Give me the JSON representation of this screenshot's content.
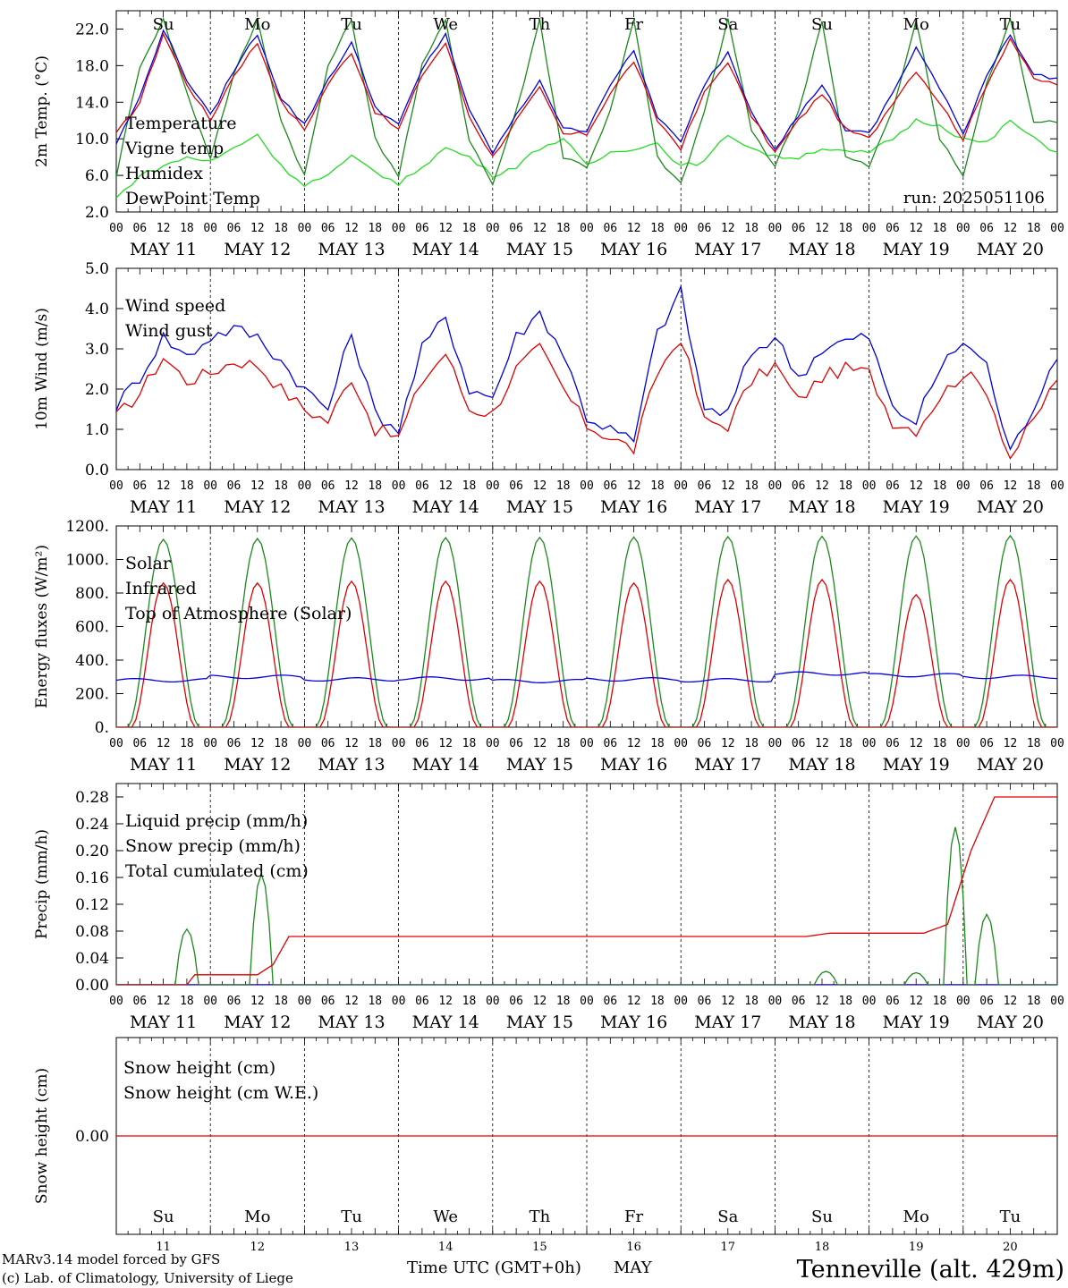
{
  "footer": {
    "credit1": "MARv3.14 model forced by GFS",
    "credit2": "(c) Lab. of Climatology, University of Liege",
    "xlabel": "Time UTC (GMT+0h)",
    "month": "MAY",
    "station": "Tenneville (alt. 429m)"
  },
  "axis": {
    "hour_ticks": [
      "00",
      "06",
      "12",
      "18"
    ],
    "end_tick": "00",
    "dates": [
      "MAY 11",
      "MAY 12",
      "MAY 13",
      "MAY 14",
      "MAY 15",
      "MAY 16",
      "MAY 17",
      "MAY 18",
      "MAY 19",
      "MAY 20"
    ],
    "weekdays": [
      "Su",
      "Mo",
      "Tu",
      "We",
      "Th",
      "Fr",
      "Sa",
      "Su",
      "Mo",
      "Tu"
    ],
    "weekday_colors": [
      "#e00000",
      "#000000",
      "#000000",
      "#000000",
      "#000000",
      "#000000",
      "#e00000",
      "#e00000",
      "#000000",
      "#000000"
    ],
    "day_numbers": [
      "11",
      "12",
      "13",
      "14",
      "15",
      "16",
      "17",
      "18",
      "19",
      "20"
    ]
  },
  "colors": {
    "red": "#e00000",
    "blue": "#0000e0",
    "green": "#1a8a1a",
    "lightgreen": "#22dd22"
  },
  "chart_data": [
    {
      "type": "line",
      "ylabel": "2m Temp. (°C)",
      "ylim": [
        2,
        24
      ],
      "yticks": [
        "2.0",
        "6.0",
        "10.0",
        "14.0",
        "18.0",
        "22.0"
      ],
      "annotation": "run: 2025051106",
      "x_hours": [
        0,
        6,
        12,
        18,
        24,
        30,
        36,
        42,
        48,
        54,
        60,
        66,
        72,
        78,
        84,
        90,
        96,
        102,
        108,
        114,
        120,
        126,
        132,
        138,
        144,
        150,
        156,
        162,
        168,
        174,
        180,
        186,
        192,
        198,
        204,
        210,
        216,
        222,
        228,
        234,
        240
      ],
      "series": [
        {
          "name": "Temperature",
          "color": "red",
          "values": [
            10.5,
            14,
            21.5,
            16,
            12,
            17,
            20.5,
            14,
            11,
            16,
            19.5,
            13,
            11,
            17,
            20.5,
            12.5,
            8,
            12,
            15.5,
            10.5,
            10.5,
            15,
            18.5,
            12,
            9,
            15,
            18.5,
            12.5,
            8.5,
            12,
            15,
            11,
            10,
            14,
            17.5,
            14,
            10,
            16,
            21,
            16.5,
            16
          ]
        },
        {
          "name": "Vigne temp",
          "color": "green",
          "values": [
            6,
            18,
            23,
            15,
            8,
            17,
            23,
            12,
            6,
            18,
            23,
            10,
            6,
            18,
            23,
            10,
            5,
            13,
            23,
            8,
            7,
            13,
            23,
            8,
            5,
            13,
            23,
            11,
            7,
            13,
            23,
            8,
            7,
            13,
            23,
            10,
            6,
            16,
            23,
            12,
            12
          ]
        },
        {
          "name": "Humidex",
          "color": "blue",
          "values": [
            9.5,
            14.5,
            22,
            16.5,
            12.5,
            17.5,
            21.5,
            14.5,
            11.5,
            16.5,
            20.5,
            13.5,
            11.5,
            17.5,
            21.5,
            13,
            8.5,
            12.5,
            16.5,
            11,
            11,
            16,
            19.5,
            12.5,
            9.5,
            16,
            19.5,
            13,
            9,
            12.5,
            16,
            11,
            10.5,
            15,
            20,
            15.5,
            10.5,
            17,
            21.5,
            17,
            16.5
          ]
        },
        {
          "name": "DewPoint Temp",
          "color": "lightgreen",
          "values": [
            3.5,
            6,
            7,
            8,
            7.5,
            9,
            10.5,
            7,
            5,
            6,
            8,
            6.5,
            5,
            7,
            9,
            8,
            6,
            7,
            9,
            10,
            7,
            8.5,
            9,
            9.5,
            7,
            7.5,
            10.5,
            9,
            8,
            8,
            9,
            8.5,
            8.5,
            10,
            12,
            11.5,
            10,
            9.5,
            12,
            10,
            8.5
          ]
        }
      ]
    },
    {
      "type": "line",
      "ylabel": "10m Wind (m/s)",
      "ylim": [
        0,
        5
      ],
      "yticks": [
        "0.0",
        "1.0",
        "2.0",
        "3.0",
        "4.0",
        "5.0"
      ],
      "x_hours": [
        0,
        6,
        12,
        18,
        24,
        30,
        36,
        42,
        48,
        54,
        60,
        66,
        72,
        78,
        84,
        90,
        96,
        102,
        108,
        114,
        120,
        126,
        132,
        138,
        144,
        150,
        156,
        162,
        168,
        174,
        180,
        186,
        192,
        198,
        204,
        210,
        216,
        222,
        228,
        234,
        240
      ],
      "series": [
        {
          "name": "Wind speed",
          "color": "red",
          "values": [
            1.3,
            1.9,
            2.8,
            2.2,
            2.4,
            2.7,
            2.6,
            2.0,
            1.5,
            1.2,
            2.3,
            1.0,
            0.8,
            2.2,
            2.9,
            1.5,
            1.4,
            2.5,
            3.0,
            2.0,
            1.1,
            0.8,
            0.5,
            2.4,
            3.3,
            1.2,
            1.1,
            2.2,
            2.6,
            1.7,
            2.3,
            2.5,
            2.4,
            1.2,
            1.0,
            1.8,
            2.4,
            2.0,
            0.3,
            1.2,
            2.3
          ]
        },
        {
          "name": "Wind gust",
          "color": "blue",
          "values": [
            1.6,
            2.3,
            3.3,
            2.8,
            3.3,
            3.5,
            3.3,
            2.7,
            2.0,
            1.5,
            3.4,
            1.4,
            1.0,
            3.0,
            3.8,
            2.0,
            1.8,
            3.3,
            3.9,
            2.9,
            1.3,
            1.0,
            0.7,
            3.4,
            4.4,
            1.5,
            1.4,
            2.9,
            3.3,
            2.3,
            3.0,
            3.2,
            3.3,
            1.5,
            1.2,
            2.5,
            3.2,
            2.6,
            0.4,
            1.6,
            2.9
          ]
        }
      ]
    },
    {
      "type": "line",
      "ylabel": "Energy fluxes (W/m²)",
      "ylim": [
        0,
        1200
      ],
      "yticks": [
        "0.",
        "200.",
        "400.",
        "600.",
        "800.",
        "1000.",
        "1200."
      ],
      "series": [
        {
          "name": "Solar",
          "color": "red",
          "daily_peaks": [
            860,
            860,
            870,
            870,
            870,
            860,
            880,
            880,
            790,
            880
          ]
        },
        {
          "name": "Infrared",
          "color": "blue",
          "daily_mean": [
            280,
            300,
            285,
            290,
            275,
            285,
            280,
            320,
            310,
            300
          ]
        },
        {
          "name": "Top of Atmosphere (Solar)",
          "color": "green",
          "daily_peaks": [
            1120,
            1125,
            1128,
            1130,
            1132,
            1134,
            1136,
            1138,
            1140,
            1142
          ]
        }
      ]
    },
    {
      "type": "line",
      "ylabel": "Precip (mm/h)",
      "ylim": [
        0,
        0.3
      ],
      "yticks": [
        "0.00",
        "0.04",
        "0.08",
        "0.12",
        "0.16",
        "0.20",
        "0.24",
        "0.28"
      ],
      "series": [
        {
          "name": "Liquid precip (mm/h)",
          "color": "green",
          "events": [
            {
              "hour": 18,
              "value": 0.083
            },
            {
              "hour": 37,
              "value": 0.165
            },
            {
              "hour": 181,
              "value": 0.02
            },
            {
              "hour": 204,
              "value": 0.018
            },
            {
              "hour": 214,
              "value": 0.235
            },
            {
              "hour": 222,
              "value": 0.105
            }
          ]
        },
        {
          "name": "Snow precip (mm/h)",
          "color": "blue",
          "values": [
            0
          ]
        },
        {
          "name": "Total cumulated (cm)",
          "color": "red",
          "x_hours": [
            0,
            18,
            20,
            36,
            40,
            44,
            176,
            182,
            206,
            212,
            218,
            224,
            240
          ],
          "values": [
            0,
            0,
            0.015,
            0.015,
            0.03,
            0.072,
            0.072,
            0.077,
            0.077,
            0.09,
            0.2,
            0.28,
            0.28
          ]
        }
      ]
    },
    {
      "type": "line",
      "ylabel": "Snow height (cm)",
      "yticks": [
        "0.00"
      ],
      "series": [
        {
          "name": "Snow height (cm)",
          "color": "red",
          "values": [
            0
          ]
        },
        {
          "name": "Snow height (cm W.E.)",
          "color": "blue",
          "values": [
            0
          ]
        }
      ]
    }
  ]
}
